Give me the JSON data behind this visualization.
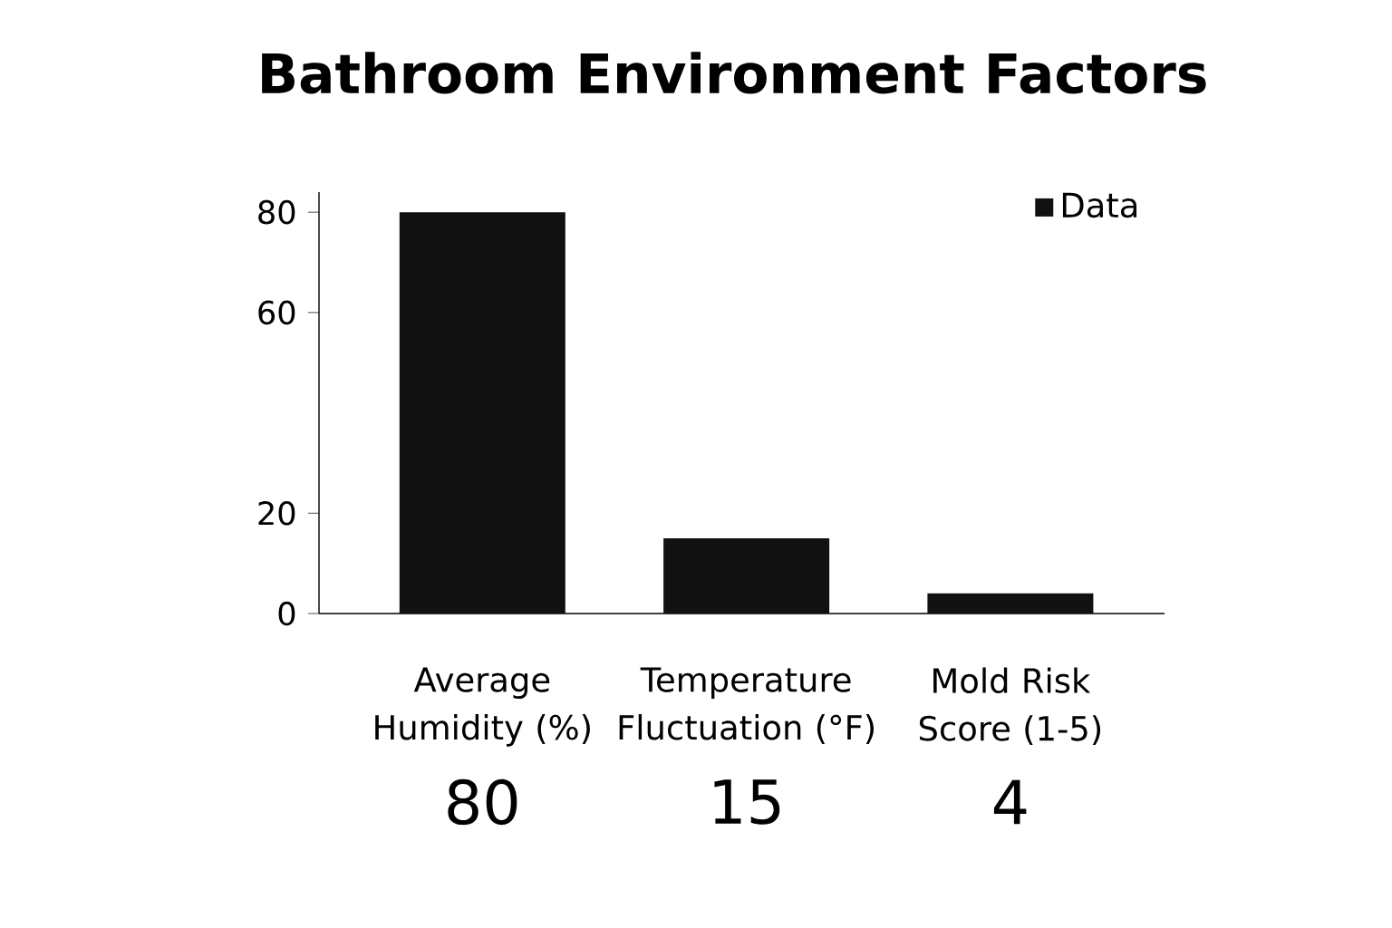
{
  "chart_data": {
    "type": "bar",
    "title": "Bathroom Environment Factors",
    "categories": [
      "Average Humidity (%)",
      "Temperature Fluctuation (°F)",
      "Mold Risk Score (1-5)"
    ],
    "series": [
      {
        "name": "Data",
        "color": "#111111",
        "values": [
          80,
          15,
          4
        ]
      }
    ],
    "ylim": [
      0,
      84
    ],
    "yticks": [
      0,
      20,
      60,
      80
    ],
    "data_labels": true,
    "legend": "top right"
  }
}
